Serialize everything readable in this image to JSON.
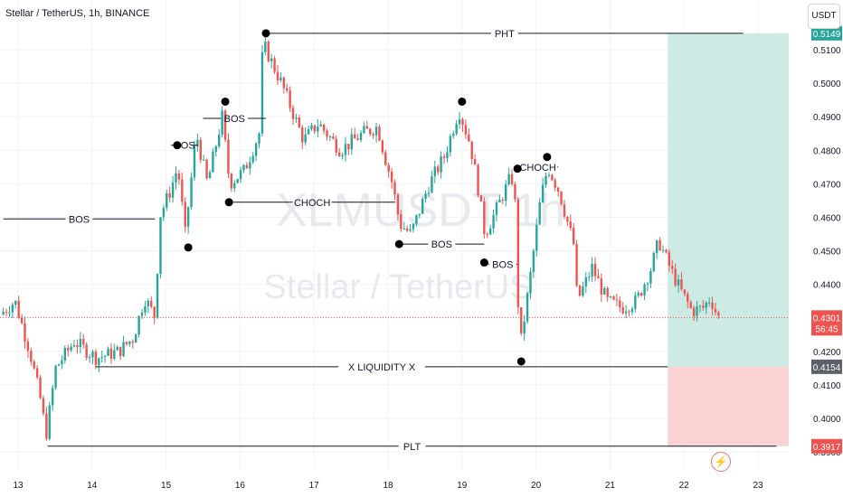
{
  "header": {
    "title": "Stellar / TetherUS, 1h, BINANCE",
    "currency": "USDT"
  },
  "watermark": {
    "ticker": "XLMUSDT 1h",
    "name": "Stellar / TetherUS"
  },
  "chart_data": {
    "type": "candlestick",
    "x_ticks": [
      "13",
      "14",
      "15",
      "16",
      "17",
      "18",
      "19",
      "20",
      "21",
      "22",
      "23"
    ],
    "y_ticks": [
      0.51,
      0.5,
      0.49,
      0.48,
      0.47,
      0.46,
      0.45,
      0.44,
      0.43,
      0.42,
      0.41,
      0.4,
      0.39
    ],
    "ylim": [
      0.388,
      0.52
    ],
    "xlim": [
      12.8,
      23.4
    ],
    "colors": {
      "up": "#26a69a",
      "down": "#ef5350",
      "current_price": "#ef5350",
      "target_zone": "#cdebe4",
      "stop_zone": "#f9d2d4",
      "line": "#131722"
    },
    "current_price": {
      "value": "0.4301",
      "countdown": "56:45"
    },
    "price_badges": [
      {
        "label": "0.5149",
        "value": 0.5149,
        "color": "#26a69a"
      },
      {
        "label": "0.4154",
        "value": 0.4154,
        "color": "#5d606b"
      },
      {
        "label": "0.3917",
        "value": 0.3917,
        "color": "#ef5350"
      }
    ],
    "position": {
      "entry": 0.4154,
      "target": 0.5149,
      "stop": 0.3917,
      "x_start": 21.78,
      "x_end": 23.4
    },
    "levels": [
      {
        "label": "PHT",
        "price": 0.5149,
        "x1": 16.35,
        "x2": 22.8
      },
      {
        "label": "BOS",
        "price": 0.4595,
        "x1": 12.8,
        "x2": 14.85
      },
      {
        "label": "BOS",
        "price": 0.4895,
        "x1": 15.5,
        "x2": 16.35
      },
      {
        "label": "BOS",
        "price": 0.4815,
        "x1": 15.15,
        "x2": 15.35
      },
      {
        "label": "CHOCH",
        "price": 0.4645,
        "x1": 15.85,
        "x2": 18.1
      },
      {
        "label": "BOS",
        "price": 0.452,
        "x1": 18.15,
        "x2": 19.3
      },
      {
        "label": "BOS",
        "price": 0.446,
        "x1": 19.35,
        "x2": 19.75
      },
      {
        "label": "CHOCH",
        "price": 0.475,
        "x1": 19.75,
        "x2": 20.3
      },
      {
        "label": "X LIQUIDITY X",
        "price": 0.4154,
        "x1": 14.05,
        "x2": 21.78
      },
      {
        "label": "PLT",
        "price": 0.3917,
        "x1": 13.4,
        "x2": 23.25
      }
    ],
    "swing_points": [
      {
        "x": 16.35,
        "price": 0.5149
      },
      {
        "x": 15.8,
        "price": 0.4945
      },
      {
        "x": 15.15,
        "price": 0.4815
      },
      {
        "x": 15.3,
        "price": 0.451
      },
      {
        "x": 15.85,
        "price": 0.4645
      },
      {
        "x": 19.0,
        "price": 0.4945
      },
      {
        "x": 18.15,
        "price": 0.452
      },
      {
        "x": 19.3,
        "price": 0.4465
      },
      {
        "x": 19.75,
        "price": 0.4745
      },
      {
        "x": 20.15,
        "price": 0.478
      },
      {
        "x": 19.8,
        "price": 0.417
      }
    ],
    "price_path": [
      [
        12.8,
        0.431
      ],
      [
        13.0,
        0.435
      ],
      [
        13.2,
        0.42
      ],
      [
        13.35,
        0.405
      ],
      [
        13.42,
        0.395
      ],
      [
        13.55,
        0.415
      ],
      [
        13.8,
        0.423
      ],
      [
        14.1,
        0.418
      ],
      [
        14.4,
        0.42
      ],
      [
        14.6,
        0.424
      ],
      [
        14.75,
        0.436
      ],
      [
        14.9,
        0.43
      ],
      [
        14.95,
        0.46
      ],
      [
        15.1,
        0.468
      ],
      [
        15.2,
        0.475
      ],
      [
        15.3,
        0.455
      ],
      [
        15.45,
        0.485
      ],
      [
        15.6,
        0.47
      ],
      [
        15.8,
        0.49
      ],
      [
        15.9,
        0.47
      ],
      [
        16.1,
        0.474
      ],
      [
        16.3,
        0.485
      ],
      [
        16.35,
        0.512
      ],
      [
        16.6,
        0.5
      ],
      [
        16.9,
        0.483
      ],
      [
        17.1,
        0.488
      ],
      [
        17.4,
        0.48
      ],
      [
        17.7,
        0.485
      ],
      [
        17.9,
        0.487
      ],
      [
        18.0,
        0.478
      ],
      [
        18.1,
        0.47
      ],
      [
        18.2,
        0.458
      ],
      [
        18.35,
        0.455
      ],
      [
        18.6,
        0.47
      ],
      [
        18.8,
        0.478
      ],
      [
        19.0,
        0.492
      ],
      [
        19.15,
        0.482
      ],
      [
        19.25,
        0.47
      ],
      [
        19.35,
        0.455
      ],
      [
        19.5,
        0.462
      ],
      [
        19.7,
        0.472
      ],
      [
        19.75,
        0.47
      ],
      [
        19.82,
        0.42
      ],
      [
        19.95,
        0.44
      ],
      [
        20.1,
        0.465
      ],
      [
        20.2,
        0.475
      ],
      [
        20.35,
        0.468
      ],
      [
        20.55,
        0.452
      ],
      [
        20.6,
        0.435
      ],
      [
        20.8,
        0.445
      ],
      [
        21.0,
        0.435
      ],
      [
        21.2,
        0.433
      ],
      [
        21.4,
        0.435
      ],
      [
        21.6,
        0.445
      ],
      [
        21.7,
        0.453
      ],
      [
        21.85,
        0.445
      ],
      [
        22.0,
        0.438
      ],
      [
        22.15,
        0.432
      ],
      [
        22.3,
        0.433
      ],
      [
        22.4,
        0.436
      ],
      [
        22.5,
        0.4301
      ]
    ]
  }
}
